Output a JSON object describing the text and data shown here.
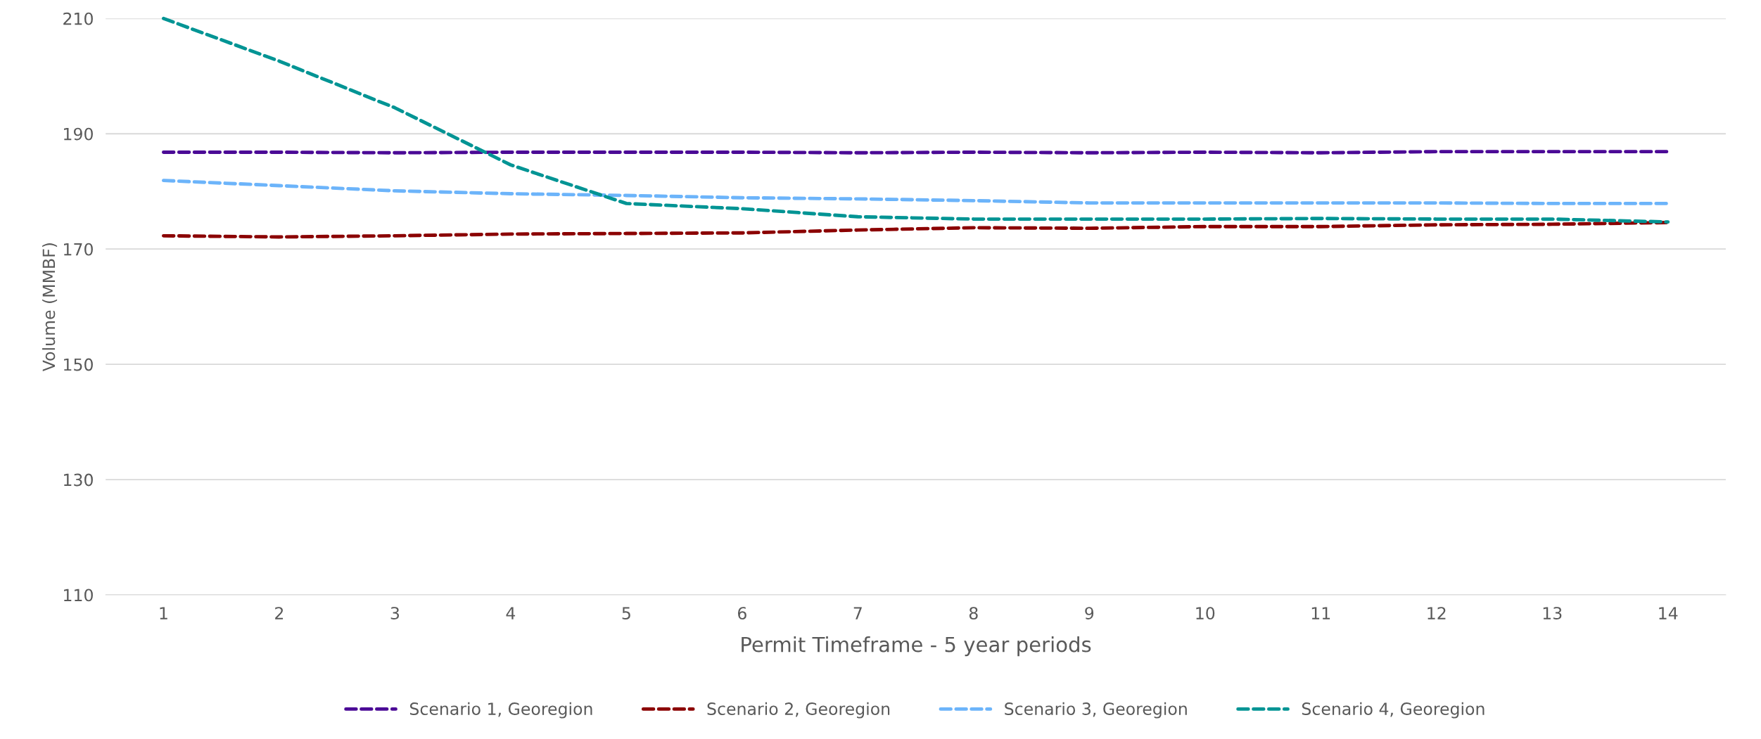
{
  "chart_data": {
    "type": "line",
    "xlabel": "Permit Timeframe - 5 year periods",
    "ylabel": "Volume (MMBF)",
    "categories": [
      "1",
      "2",
      "3",
      "4",
      "5",
      "6",
      "7",
      "8",
      "9",
      "10",
      "11",
      "12",
      "13",
      "14"
    ],
    "ylim": [
      110,
      210
    ],
    "yticks": [
      110,
      130,
      150,
      170,
      190,
      210
    ],
    "grid": "y",
    "legend": "bottom",
    "line_style": "dashed",
    "marker": "none",
    "series": [
      {
        "name": "Scenario 1, Georegion",
        "color": "#4b0a96",
        "values": [
          186.8,
          186.8,
          186.7,
          186.8,
          186.8,
          186.8,
          186.7,
          186.8,
          186.7,
          186.8,
          186.7,
          186.9,
          186.9,
          186.9
        ]
      },
      {
        "name": "Scenario 2, Georegion",
        "color": "#8b0000",
        "values": [
          172.3,
          172.1,
          172.3,
          172.6,
          172.7,
          172.8,
          173.3,
          173.7,
          173.6,
          173.9,
          173.9,
          174.2,
          174.3,
          174.6
        ]
      },
      {
        "name": "Scenario 3, Georegion",
        "color": "#6cb4fa",
        "values": [
          181.9,
          181.0,
          180.1,
          179.6,
          179.3,
          178.9,
          178.7,
          178.4,
          178.0,
          178.0,
          178.0,
          178.0,
          177.9,
          177.9
        ]
      },
      {
        "name": "Scenario 4, Georegion",
        "color": "#009494",
        "values": [
          210,
          202.6,
          194.5,
          184.6,
          177.9,
          177.0,
          175.6,
          175.2,
          175.2,
          175.2,
          175.3,
          175.2,
          175.2,
          174.7
        ]
      }
    ]
  }
}
